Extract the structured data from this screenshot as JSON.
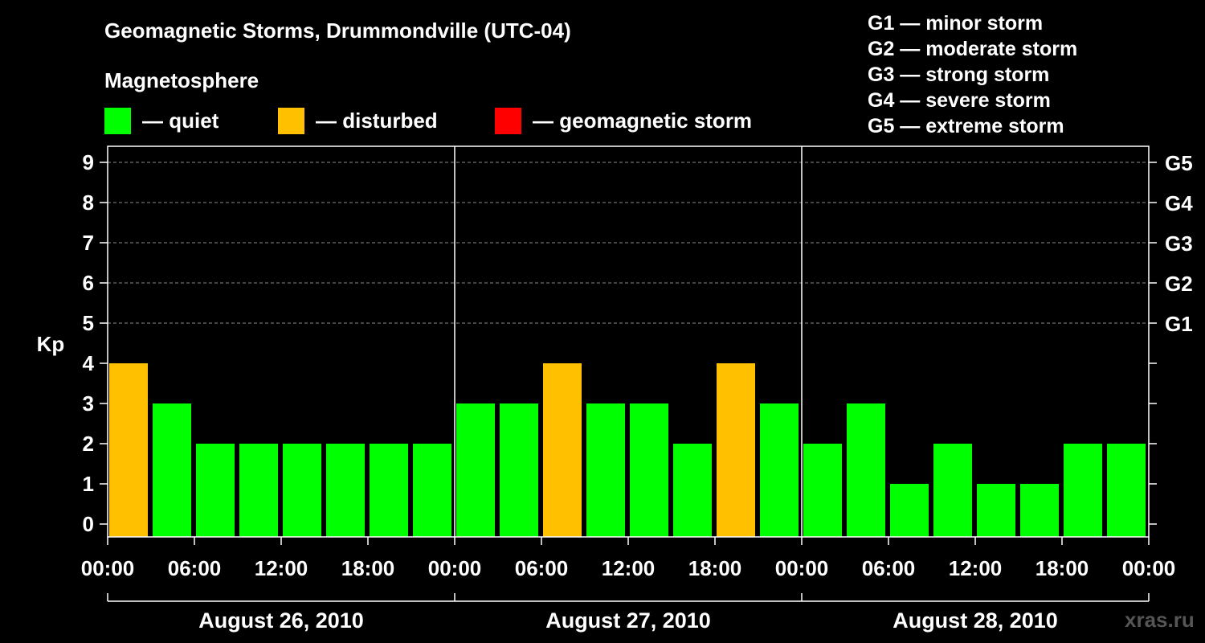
{
  "title": "Geomagnetic Storms, Drummondville (UTC-04)",
  "magnetosphere": {
    "title": "Magnetosphere",
    "legend": [
      {
        "label": "— quiet",
        "color": "#00ff00"
      },
      {
        "label": "— disturbed",
        "color": "#ffc000"
      },
      {
        "label": "— geomagnetic storm",
        "color": "#ff0000"
      }
    ]
  },
  "storm_scale": [
    "G1 — minor storm",
    "G2 — moderate storm",
    "G3 — strong storm",
    "G4 — severe storm",
    "G5 — extreme storm"
  ],
  "watermark": "xras.ru",
  "chart_data": {
    "type": "bar",
    "ylabel": "Kp",
    "ylim": [
      0,
      9
    ],
    "yticks": [
      "0",
      "1",
      "2",
      "3",
      "4",
      "5",
      "6",
      "7",
      "8",
      "9"
    ],
    "right_axis": [
      {
        "kp": 5,
        "label": "G1"
      },
      {
        "kp": 6,
        "label": "G2"
      },
      {
        "kp": 7,
        "label": "G3"
      },
      {
        "kp": 8,
        "label": "G4"
      },
      {
        "kp": 9,
        "label": "G5"
      }
    ],
    "grid": "dashed horizontal at Kp 5-9",
    "xtick_labels": [
      "00:00",
      "06:00",
      "12:00",
      "18:00",
      "00:00",
      "06:00",
      "12:00",
      "18:00",
      "00:00",
      "06:00",
      "12:00",
      "18:00",
      "00:00"
    ],
    "days": [
      "August 26, 2010",
      "August 27, 2010",
      "August 28, 2010"
    ],
    "values": [
      4,
      3,
      2,
      2,
      2,
      2,
      2,
      2,
      3,
      3,
      4,
      3,
      3,
      2,
      4,
      3,
      2,
      3,
      1,
      2,
      1,
      1,
      2,
      2
    ],
    "status": [
      "disturbed",
      "quiet",
      "quiet",
      "quiet",
      "quiet",
      "quiet",
      "quiet",
      "quiet",
      "quiet",
      "quiet",
      "disturbed",
      "quiet",
      "quiet",
      "quiet",
      "disturbed",
      "quiet",
      "quiet",
      "quiet",
      "quiet",
      "quiet",
      "quiet",
      "quiet",
      "quiet",
      "quiet"
    ],
    "colors": {
      "quiet": "#00ff00",
      "disturbed": "#ffc000",
      "storm": "#ff0000"
    }
  }
}
